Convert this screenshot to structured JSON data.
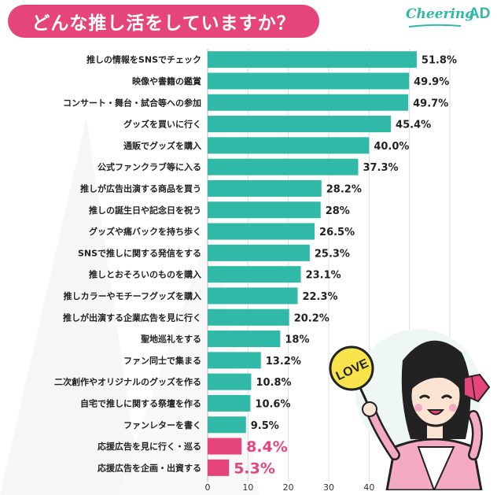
{
  "title": "どんな推し活をしていますか？",
  "logo": {
    "text_main": "Cheering",
    "text_ad": "AD"
  },
  "colors": {
    "primary_bar": "#2fb9a6",
    "highlight_bar": "#e6457a",
    "title_bg": "#e6457a",
    "label_text": "#222222"
  },
  "mascot": {
    "fan_text": "LOVE"
  },
  "chart_data": {
    "type": "bar",
    "orientation": "horizontal",
    "categories": [
      "推しの情報をSNSでチェック",
      "映像や書籍の鑑賞",
      "コンサート・舞台・試合等への参加",
      "グッズを買いに行く",
      "通販でグッズを購入",
      "公式ファンクラブ等に入る",
      "推しが広告出演する商品を買う",
      "推しの誕生日や記念日を祝う",
      "グッズや痛バックを持ち歩く",
      "SNSで推しに関する発信をする",
      "推しとおそろいのものを購入",
      "推しカラーやモチーフグッズを購入",
      "推しが出演する企業広告を見に行く",
      "聖地巡礼をする",
      "ファン同士で集まる",
      "二次創作やオリジナルのグッズを作る",
      "自宅で推しに関する祭壇を作る",
      "ファンレターを書く",
      "応援広告を見に行く・巡る",
      "応援広告を企画・出資する"
    ],
    "values": [
      51.8,
      49.9,
      49.7,
      45.4,
      40.0,
      37.3,
      28.2,
      28,
      26.5,
      25.3,
      23.1,
      22.3,
      20.2,
      18,
      13.2,
      10.8,
      10.6,
      9.5,
      8.4,
      5.3
    ],
    "value_labels": [
      "51.8%",
      "49.9%",
      "49.7%",
      "45.4%",
      "40.0%",
      "37.3%",
      "28.2%",
      "28%",
      "26.5%",
      "25.3%",
      "23.1%",
      "22.3%",
      "20.2%",
      "18%",
      "13.2%",
      "10.8%",
      "10.6%",
      "9.5%",
      "8.4%",
      "5.3%"
    ],
    "highlighted": [
      false,
      false,
      false,
      false,
      false,
      false,
      false,
      false,
      false,
      false,
      false,
      false,
      false,
      false,
      false,
      false,
      false,
      false,
      true,
      true
    ],
    "xlim": [
      0,
      60
    ],
    "xticks": [
      "0",
      "10",
      "20",
      "30",
      "40",
      "50",
      "60"
    ],
    "grid": true,
    "xlabel": "",
    "ylabel": ""
  }
}
